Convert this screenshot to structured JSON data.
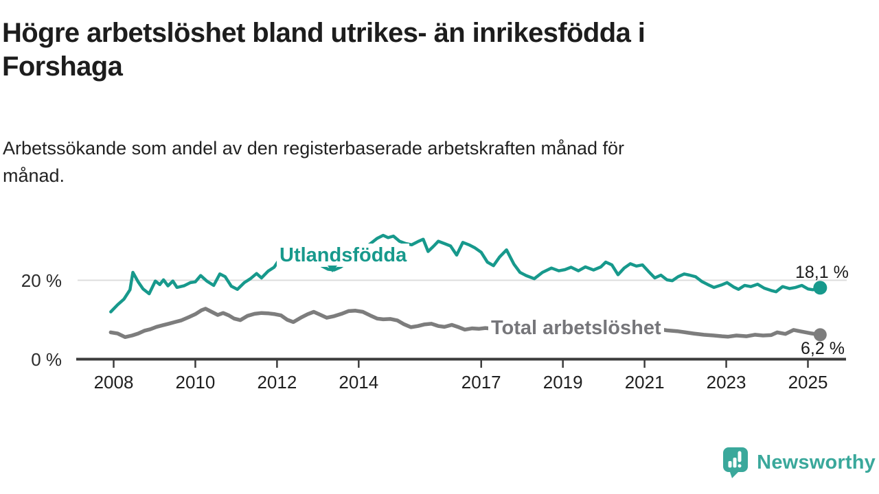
{
  "header": {
    "title_lines": [
      "Högre arbetslöshet bland utrikes- än inrikesfödda i",
      "Forshaga"
    ],
    "subtitle_lines": [
      "Arbetssökande som andel av den registerbaserade arbetskraften månad för",
      "månad."
    ]
  },
  "branding": {
    "name": "Newsworthy",
    "logo": "speech-bubble-bar-chart-icon",
    "color": "#3aa89b"
  },
  "colors": {
    "teal_series": "#17998c",
    "gray_series": "#7d7d7d",
    "gridline": "#dcdcdc",
    "axis": "#3c3c3c",
    "text": "#1d1d1d"
  },
  "chart_data": {
    "type": "line",
    "unit": "%",
    "grid": "single horizontal gridline at 20 %",
    "legend_position": "inline labels on lines",
    "x_range": [
      2007.93,
      2025.3
    ],
    "ylim": [
      0,
      35
    ],
    "y_ticks": [
      {
        "value": 0,
        "label": "0 %"
      },
      {
        "value": 20,
        "label": "20 %"
      }
    ],
    "x_ticks": [
      2008,
      2010,
      2012,
      2014,
      2017,
      2019,
      2021,
      2023,
      2025
    ],
    "annotation_arrow": {
      "points_to_series": "Utlandsfödda",
      "x": 2013.35
    },
    "series": [
      {
        "name": "Utlandsfödda",
        "color": "#17998c",
        "end_label": "18,1 %",
        "end_value": 18.1,
        "points": [
          [
            2007.93,
            12.0
          ],
          [
            2008.1,
            13.8
          ],
          [
            2008.25,
            15.2
          ],
          [
            2008.4,
            17.6
          ],
          [
            2008.47,
            22.0
          ],
          [
            2008.6,
            19.6
          ],
          [
            2008.72,
            17.8
          ],
          [
            2008.87,
            16.6
          ],
          [
            2009.02,
            19.8
          ],
          [
            2009.13,
            18.9
          ],
          [
            2009.22,
            20.1
          ],
          [
            2009.33,
            18.6
          ],
          [
            2009.45,
            19.8
          ],
          [
            2009.55,
            18.2
          ],
          [
            2009.72,
            18.6
          ],
          [
            2009.88,
            19.4
          ],
          [
            2010.0,
            19.6
          ],
          [
            2010.13,
            21.2
          ],
          [
            2010.28,
            19.8
          ],
          [
            2010.45,
            18.7
          ],
          [
            2010.6,
            21.6
          ],
          [
            2010.73,
            20.9
          ],
          [
            2010.88,
            18.5
          ],
          [
            2011.03,
            17.7
          ],
          [
            2011.2,
            19.4
          ],
          [
            2011.35,
            20.4
          ],
          [
            2011.5,
            21.7
          ],
          [
            2011.62,
            20.6
          ],
          [
            2011.78,
            22.3
          ],
          [
            2011.93,
            23.3
          ],
          [
            2012.08,
            25.6
          ],
          [
            2012.2,
            26.0
          ],
          [
            2012.35,
            27.2
          ],
          [
            2012.5,
            28.4
          ],
          [
            2012.65,
            27.6
          ],
          [
            2012.8,
            26.2
          ],
          [
            2012.95,
            24.9
          ],
          [
            2013.1,
            23.6
          ],
          [
            2013.25,
            22.8
          ],
          [
            2013.4,
            22.6
          ],
          [
            2013.55,
            23.3
          ],
          [
            2013.7,
            24.4
          ],
          [
            2013.85,
            25.7
          ],
          [
            2014.0,
            27.1
          ],
          [
            2014.15,
            28.2
          ],
          [
            2014.3,
            29.4
          ],
          [
            2014.45,
            30.6
          ],
          [
            2014.6,
            31.4
          ],
          [
            2014.72,
            30.8
          ],
          [
            2014.85,
            31.2
          ],
          [
            2015.0,
            29.9
          ],
          [
            2015.15,
            29.3
          ],
          [
            2015.3,
            29.0
          ],
          [
            2015.45,
            29.8
          ],
          [
            2015.58,
            30.4
          ],
          [
            2015.7,
            27.3
          ],
          [
            2015.83,
            28.6
          ],
          [
            2015.95,
            29.9
          ],
          [
            2016.1,
            29.3
          ],
          [
            2016.25,
            28.7
          ],
          [
            2016.4,
            26.4
          ],
          [
            2016.55,
            29.6
          ],
          [
            2016.7,
            29.0
          ],
          [
            2016.85,
            28.2
          ],
          [
            2017.0,
            27.1
          ],
          [
            2017.15,
            24.6
          ],
          [
            2017.3,
            23.7
          ],
          [
            2017.45,
            25.9
          ],
          [
            2017.62,
            27.7
          ],
          [
            2017.8,
            24.1
          ],
          [
            2017.95,
            22.0
          ],
          [
            2018.1,
            21.2
          ],
          [
            2018.3,
            20.4
          ],
          [
            2018.5,
            22.0
          ],
          [
            2018.72,
            23.1
          ],
          [
            2018.9,
            22.4
          ],
          [
            2019.05,
            22.7
          ],
          [
            2019.2,
            23.3
          ],
          [
            2019.38,
            22.4
          ],
          [
            2019.55,
            23.4
          ],
          [
            2019.75,
            22.6
          ],
          [
            2019.93,
            23.4
          ],
          [
            2020.05,
            24.6
          ],
          [
            2020.2,
            23.9
          ],
          [
            2020.35,
            21.4
          ],
          [
            2020.5,
            23.1
          ],
          [
            2020.65,
            24.2
          ],
          [
            2020.8,
            23.6
          ],
          [
            2020.95,
            23.9
          ],
          [
            2021.1,
            22.2
          ],
          [
            2021.25,
            20.6
          ],
          [
            2021.4,
            21.3
          ],
          [
            2021.55,
            20.1
          ],
          [
            2021.68,
            19.9
          ],
          [
            2021.82,
            20.9
          ],
          [
            2021.97,
            21.6
          ],
          [
            2022.1,
            21.3
          ],
          [
            2022.25,
            20.9
          ],
          [
            2022.4,
            19.7
          ],
          [
            2022.55,
            18.9
          ],
          [
            2022.7,
            18.2
          ],
          [
            2022.88,
            18.8
          ],
          [
            2023.02,
            19.4
          ],
          [
            2023.18,
            18.3
          ],
          [
            2023.3,
            17.7
          ],
          [
            2023.45,
            18.7
          ],
          [
            2023.6,
            18.4
          ],
          [
            2023.77,
            19.0
          ],
          [
            2023.93,
            18.0
          ],
          [
            2024.1,
            17.4
          ],
          [
            2024.22,
            17.1
          ],
          [
            2024.38,
            18.4
          ],
          [
            2024.55,
            17.9
          ],
          [
            2024.7,
            18.2
          ],
          [
            2024.85,
            18.7
          ],
          [
            2025.0,
            17.8
          ],
          [
            2025.12,
            17.6
          ],
          [
            2025.3,
            18.1
          ]
        ]
      },
      {
        "name": "Total arbetslöshet",
        "color": "#7d7d7d",
        "end_label": "6,2 %",
        "end_value": 6.2,
        "points": [
          [
            2007.93,
            6.8
          ],
          [
            2008.1,
            6.5
          ],
          [
            2008.28,
            5.6
          ],
          [
            2008.45,
            6.0
          ],
          [
            2008.6,
            6.5
          ],
          [
            2008.75,
            7.2
          ],
          [
            2008.9,
            7.6
          ],
          [
            2009.05,
            8.2
          ],
          [
            2009.2,
            8.6
          ],
          [
            2009.35,
            9.0
          ],
          [
            2009.5,
            9.4
          ],
          [
            2009.65,
            9.8
          ],
          [
            2009.85,
            10.7
          ],
          [
            2010.0,
            11.4
          ],
          [
            2010.15,
            12.4
          ],
          [
            2010.25,
            12.8
          ],
          [
            2010.4,
            12.0
          ],
          [
            2010.55,
            11.2
          ],
          [
            2010.68,
            11.7
          ],
          [
            2010.82,
            11.1
          ],
          [
            2010.95,
            10.3
          ],
          [
            2011.1,
            9.9
          ],
          [
            2011.28,
            11.0
          ],
          [
            2011.45,
            11.5
          ],
          [
            2011.62,
            11.7
          ],
          [
            2011.8,
            11.6
          ],
          [
            2011.95,
            11.4
          ],
          [
            2012.1,
            11.1
          ],
          [
            2012.25,
            10.0
          ],
          [
            2012.4,
            9.4
          ],
          [
            2012.58,
            10.5
          ],
          [
            2012.75,
            11.4
          ],
          [
            2012.9,
            12.0
          ],
          [
            2013.05,
            11.3
          ],
          [
            2013.22,
            10.5
          ],
          [
            2013.4,
            10.9
          ],
          [
            2013.58,
            11.5
          ],
          [
            2013.75,
            12.2
          ],
          [
            2013.92,
            12.3
          ],
          [
            2014.1,
            12.0
          ],
          [
            2014.28,
            11.1
          ],
          [
            2014.45,
            10.3
          ],
          [
            2014.6,
            10.1
          ],
          [
            2014.78,
            10.2
          ],
          [
            2014.95,
            9.8
          ],
          [
            2015.1,
            8.9
          ],
          [
            2015.28,
            8.1
          ],
          [
            2015.45,
            8.4
          ],
          [
            2015.6,
            8.8
          ],
          [
            2015.78,
            9.0
          ],
          [
            2015.95,
            8.4
          ],
          [
            2016.1,
            8.2
          ],
          [
            2016.28,
            8.7
          ],
          [
            2016.45,
            8.1
          ],
          [
            2016.6,
            7.5
          ],
          [
            2016.78,
            7.8
          ],
          [
            2016.95,
            7.7
          ],
          [
            2017.1,
            7.9
          ],
          [
            2017.3,
            7.7
          ],
          [
            2017.5,
            7.5
          ],
          [
            2017.75,
            7.3
          ],
          [
            2018.0,
            7.2
          ],
          [
            2018.3,
            7.0
          ],
          [
            2018.6,
            6.9
          ],
          [
            2018.9,
            7.0
          ],
          [
            2019.2,
            7.1
          ],
          [
            2019.5,
            7.2
          ],
          [
            2019.8,
            7.6
          ],
          [
            2020.1,
            8.4
          ],
          [
            2020.4,
            8.7
          ],
          [
            2020.7,
            8.5
          ],
          [
            2021.0,
            8.1
          ],
          [
            2021.3,
            7.7
          ],
          [
            2021.55,
            7.3
          ],
          [
            2021.8,
            7.1
          ],
          [
            2022.0,
            6.8
          ],
          [
            2022.2,
            6.5
          ],
          [
            2022.45,
            6.2
          ],
          [
            2022.7,
            6.0
          ],
          [
            2022.9,
            5.8
          ],
          [
            2023.05,
            5.7
          ],
          [
            2023.25,
            6.0
          ],
          [
            2023.5,
            5.8
          ],
          [
            2023.7,
            6.2
          ],
          [
            2023.9,
            6.0
          ],
          [
            2024.1,
            6.1
          ],
          [
            2024.25,
            6.8
          ],
          [
            2024.45,
            6.4
          ],
          [
            2024.65,
            7.4
          ],
          [
            2024.85,
            7.0
          ],
          [
            2025.05,
            6.6
          ],
          [
            2025.3,
            6.2
          ]
        ]
      }
    ]
  }
}
